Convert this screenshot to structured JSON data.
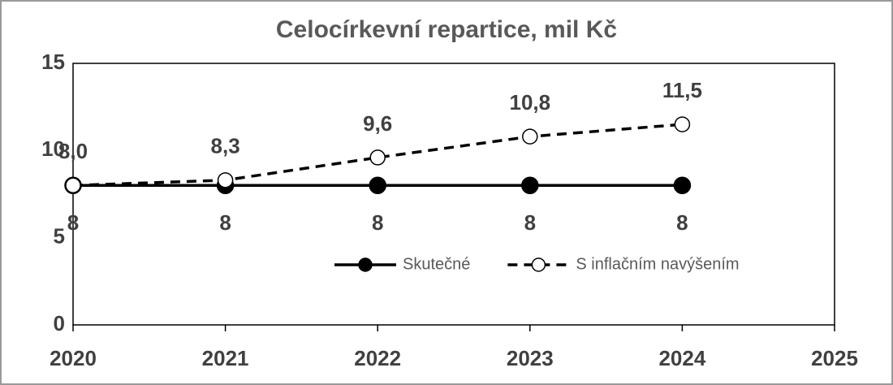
{
  "chart_data": {
    "type": "line",
    "title": "Celocírkevní repartice, mil Kč",
    "x": [
      2020,
      2021,
      2022,
      2023,
      2024
    ],
    "series": [
      {
        "name": "Skutečné",
        "color": "#000000",
        "dash": false,
        "marker": "filled",
        "label_position": "below",
        "values": [
          8,
          8,
          8,
          8,
          8
        ],
        "value_labels": [
          "8",
          "8",
          "8",
          "8",
          "8"
        ]
      },
      {
        "name": "S inflačním navýšením",
        "color": "#000000",
        "dash": true,
        "marker": "open",
        "label_position": "above",
        "values": [
          8.0,
          8.3,
          9.6,
          10.8,
          11.5
        ],
        "value_labels": [
          "8,0",
          "8,3",
          "9,6",
          "10,8",
          "11,5"
        ]
      }
    ],
    "xlim": [
      2020,
      2025
    ],
    "xticks": [
      2020,
      2021,
      2022,
      2023,
      2024,
      2025
    ],
    "ylim": [
      0,
      15
    ],
    "yticks": [
      0,
      5,
      10,
      15
    ],
    "grid": false,
    "legend": "lower right"
  }
}
